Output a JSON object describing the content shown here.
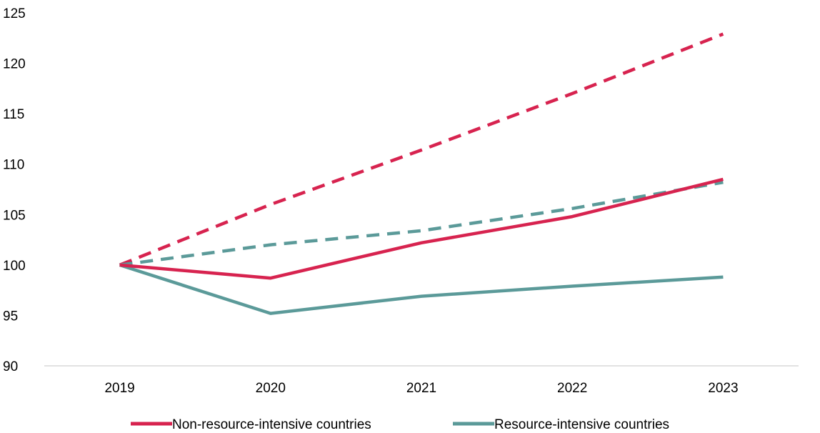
{
  "chart_data": {
    "type": "line",
    "x": [
      "2019",
      "2020",
      "2021",
      "2022",
      "2023"
    ],
    "ylim": [
      90,
      125
    ],
    "yticks": [
      90,
      95,
      100,
      105,
      110,
      115,
      120,
      125
    ],
    "grid": false,
    "legend_position": "bottom",
    "series": [
      {
        "name": "Non-resource-intensive countries",
        "color": "#d7234f",
        "style": "solid",
        "values": [
          100,
          98.7,
          102.2,
          104.8,
          108.5
        ]
      },
      {
        "name": "Resource-intensive countries",
        "color": "#5b9a99",
        "style": "solid",
        "values": [
          100,
          95.2,
          96.9,
          97.9,
          98.8
        ]
      },
      {
        "name": "",
        "color": "#d7234f",
        "style": "dashed",
        "values": [
          100,
          106.0,
          111.4,
          117.0,
          122.9
        ]
      },
      {
        "name": "",
        "color": "#5b9a99",
        "style": "dashed",
        "values": [
          100,
          102.0,
          103.4,
          105.6,
          108.2
        ]
      }
    ]
  }
}
